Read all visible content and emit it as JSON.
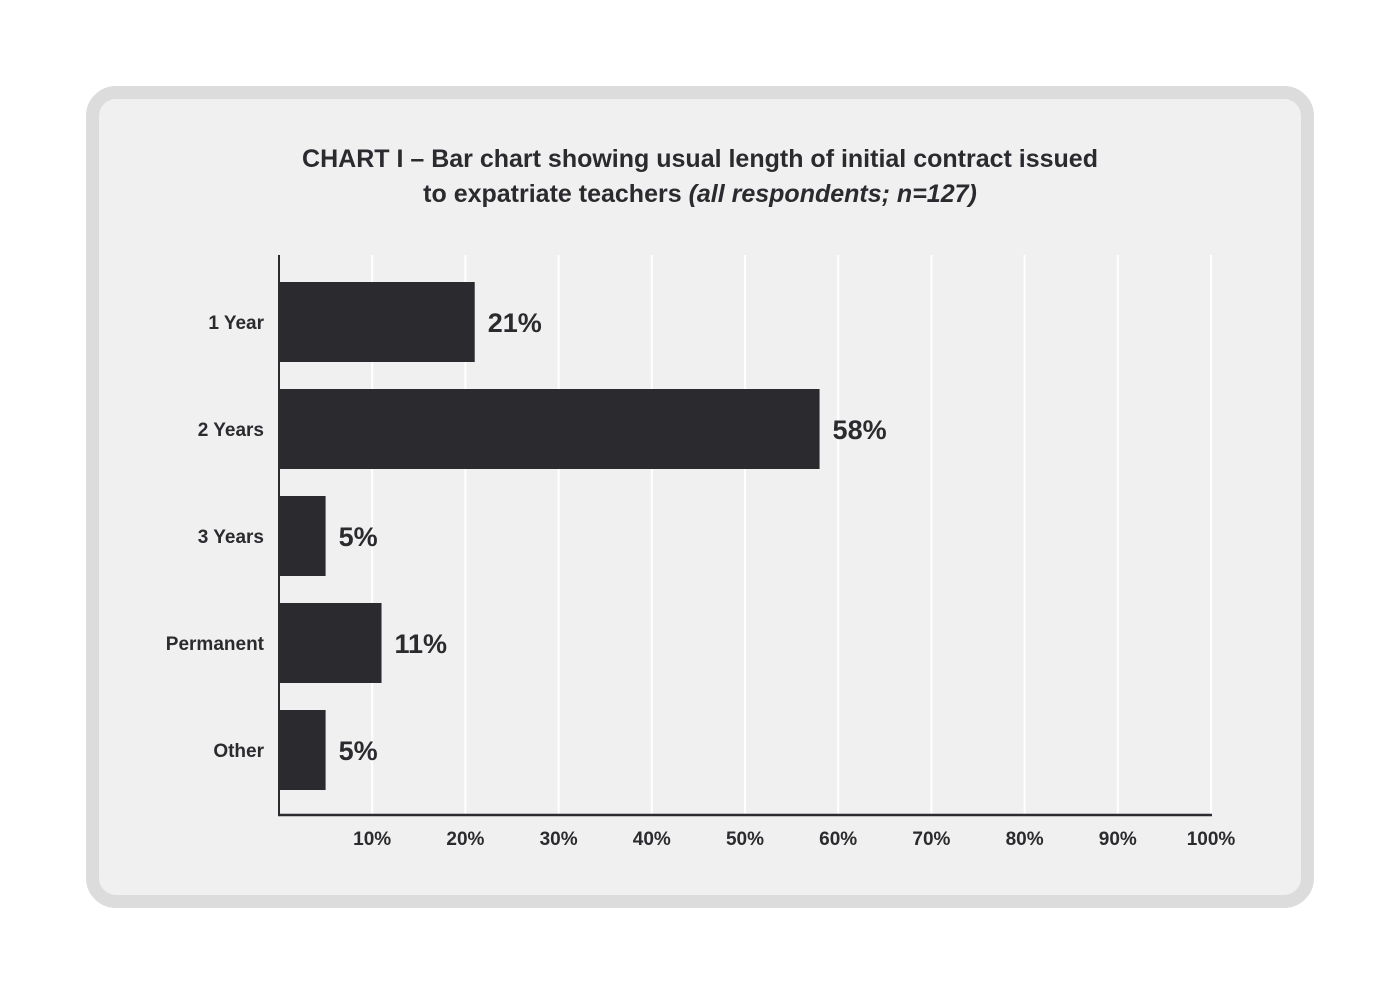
{
  "chart_data": {
    "type": "bar",
    "orientation": "horizontal",
    "title": "CHART I – Bar chart showing usual length of initial contract issued",
    "title_line2": "to expatriate teachers",
    "title_italic": "(all respondents; n=127)",
    "categories": [
      "1 Year",
      "2 Years",
      "3 Years",
      "Permanent",
      "Other"
    ],
    "values": [
      21,
      58,
      5,
      11,
      5
    ],
    "value_labels": [
      "21%",
      "58%",
      "5%",
      "11%",
      "5%"
    ],
    "xlim": [
      0,
      100
    ],
    "xticks": [
      10,
      20,
      30,
      40,
      50,
      60,
      70,
      80,
      90,
      100
    ],
    "xtick_labels": [
      "10%",
      "20%",
      "30%",
      "40%",
      "50%",
      "60%",
      "70%",
      "80%",
      "90%",
      "100%"
    ],
    "grid": true,
    "bar_color": "#2b2a2e",
    "grid_color": "#ffffff"
  }
}
